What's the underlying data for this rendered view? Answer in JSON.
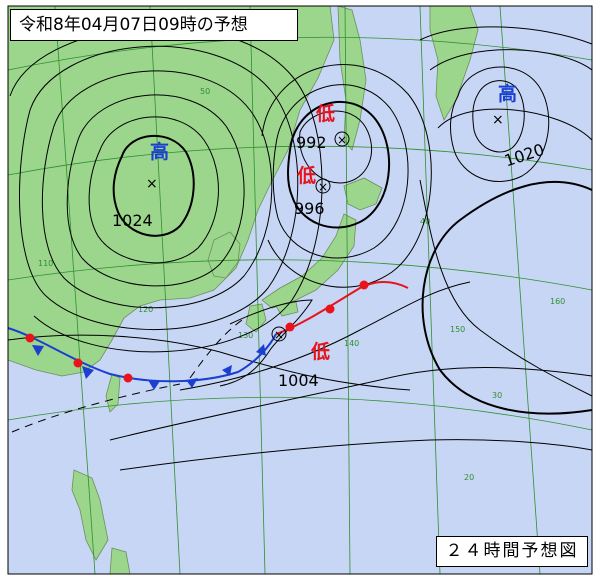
{
  "title": "令和8年04月07日09時の予想",
  "forecast_label": "２４時間予想図",
  "colors": {
    "sea": "#c7d6f4",
    "land": "#9cd68c",
    "land_border": "#6b8f5c",
    "isobar": "#000000",
    "grid": "#2f8f2f",
    "high": "#1a3fd1",
    "low": "#e8131b",
    "warm_front": "#e8131b",
    "cold_front": "#1a3fd1"
  },
  "pressure_systems": [
    {
      "type": "high",
      "symbol": "高",
      "pressure": "1024"
    },
    {
      "type": "low",
      "symbol": "低",
      "pressure": "992"
    },
    {
      "type": "low",
      "symbol": "低",
      "pressure": "996"
    },
    {
      "type": "high",
      "symbol": "高",
      "pressure": "1020"
    },
    {
      "type": "low",
      "symbol": "低",
      "pressure": "1004"
    }
  ],
  "grid_labels": [
    "50",
    "40",
    "30",
    "20",
    "110",
    "120",
    "130",
    "140",
    "150",
    "160"
  ]
}
